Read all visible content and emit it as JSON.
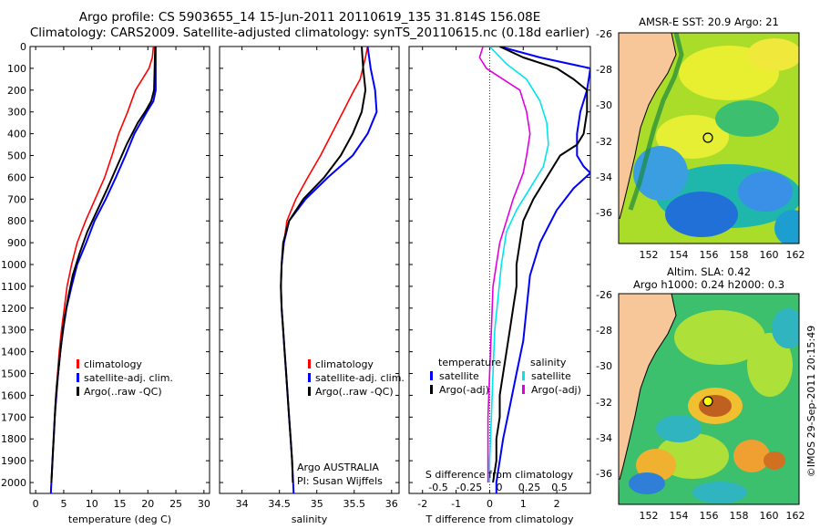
{
  "header": {
    "title_line1": "Argo profile: CS 5903655_14 15-Jun-2011 20110619_135 31.814S 156.08E",
    "title_line2": "Climatology: CARS2009. Satellite-adjusted climatology: synTS_20110615.nc (0.18d earlier)"
  },
  "colors": {
    "climatology": "#ff0000",
    "satellite": "#0000ff",
    "argo": "#000000",
    "sal_satellite": "#00e5ee",
    "sal_argo": "#e000e0",
    "land": "#f7c79a"
  },
  "chart_data": [
    {
      "type": "line",
      "id": "temperature",
      "xlabel": "temperature (deg C)",
      "ylabel": "",
      "xlim": [
        -1,
        31
      ],
      "xticks": [
        0,
        5,
        10,
        15,
        20,
        25,
        30
      ],
      "ylim": [
        0,
        2050
      ],
      "yticks": [
        0,
        100,
        200,
        300,
        400,
        500,
        600,
        700,
        800,
        900,
        1000,
        1100,
        1200,
        1300,
        1400,
        1500,
        1600,
        1700,
        1800,
        1900,
        2000
      ],
      "legend": [
        "climatology",
        "satellite-adj. clim.",
        "Argo(..raw -QC)"
      ],
      "series": [
        {
          "name": "climatology",
          "color": "red",
          "points": [
            [
              21,
              0
            ],
            [
              20.8,
              50
            ],
            [
              20.2,
              100
            ],
            [
              19,
              150
            ],
            [
              17.8,
              200
            ],
            [
              16.4,
              300
            ],
            [
              14.8,
              400
            ],
            [
              13.6,
              500
            ],
            [
              12.3,
              600
            ],
            [
              10.6,
              700
            ],
            [
              8.9,
              800
            ],
            [
              7.4,
              900
            ],
            [
              6.4,
              1000
            ],
            [
              5.6,
              1100
            ],
            [
              5.1,
              1200
            ],
            [
              4.6,
              1300
            ],
            [
              4.2,
              1400
            ],
            [
              3.9,
              1500
            ],
            [
              3.6,
              1600
            ],
            [
              3.4,
              1700
            ],
            [
              3.2,
              1800
            ],
            [
              3.0,
              1900
            ],
            [
              2.8,
              2000
            ],
            [
              2.7,
              2050
            ]
          ]
        },
        {
          "name": "satellite-adj. clim.",
          "color": "blue",
          "points": [
            [
              21.4,
              0
            ],
            [
              21.4,
              100
            ],
            [
              21.4,
              200
            ],
            [
              21,
              250
            ],
            [
              19.8,
              300
            ],
            [
              17.6,
              400
            ],
            [
              16,
              500
            ],
            [
              14.3,
              600
            ],
            [
              12.5,
              700
            ],
            [
              10.5,
              800
            ],
            [
              9,
              900
            ],
            [
              7.4,
              1000
            ],
            [
              6.4,
              1100
            ],
            [
              5.5,
              1200
            ],
            [
              4.9,
              1300
            ],
            [
              4.4,
              1400
            ],
            [
              4,
              1500
            ],
            [
              3.7,
              1600
            ],
            [
              3.4,
              1700
            ],
            [
              3.2,
              1800
            ],
            [
              3,
              1900
            ],
            [
              2.8,
              2000
            ],
            [
              2.7,
              2050
            ]
          ]
        },
        {
          "name": "Argo(..raw -QC)",
          "color": "black",
          "points": [
            [
              21.3,
              0
            ],
            [
              21.2,
              100
            ],
            [
              21.1,
              200
            ],
            [
              20.6,
              250
            ],
            [
              19.5,
              300
            ],
            [
              18.2,
              350
            ],
            [
              16.2,
              450
            ],
            [
              14.5,
              550
            ],
            [
              12.8,
              650
            ],
            [
              11,
              750
            ],
            [
              9.2,
              850
            ],
            [
              7.8,
              950
            ],
            [
              6.6,
              1050
            ],
            [
              5.8,
              1150
            ],
            [
              5.1,
              1250
            ],
            [
              4.6,
              1350
            ],
            [
              4.2,
              1450
            ],
            [
              3.8,
              1550
            ],
            [
              3.5,
              1650
            ],
            [
              3.3,
              1750
            ],
            [
              3.1,
              1850
            ],
            [
              2.9,
              1950
            ],
            [
              2.8,
              2000
            ]
          ]
        }
      ]
    },
    {
      "type": "line",
      "id": "salinity",
      "xlabel": "salinity",
      "xlim": [
        33.7,
        36.1
      ],
      "xticks": [
        34,
        34.5,
        35,
        35.5,
        36
      ],
      "xticklabels": [
        "34",
        "34.5",
        "35",
        "35.5",
        "36"
      ],
      "ylim": [
        0,
        2050
      ],
      "legend": [
        "climatology",
        "satellite-adj. clim.",
        "Argo(..raw -QC)"
      ],
      "annotation": [
        "Argo AUSTRALIA",
        "PI: Susan Wijffels"
      ],
      "series": [
        {
          "name": "climatology",
          "color": "red",
          "points": [
            [
              35.68,
              0
            ],
            [
              35.65,
              50
            ],
            [
              35.58,
              150
            ],
            [
              35.5,
              200
            ],
            [
              35.35,
              300
            ],
            [
              35.2,
              400
            ],
            [
              35.05,
              500
            ],
            [
              34.88,
              600
            ],
            [
              34.72,
              700
            ],
            [
              34.6,
              800
            ],
            [
              34.56,
              900
            ],
            [
              34.53,
              1000
            ],
            [
              34.52,
              1100
            ],
            [
              34.53,
              1200
            ],
            [
              34.55,
              1300
            ],
            [
              34.57,
              1400
            ],
            [
              34.59,
              1500
            ],
            [
              34.61,
              1600
            ],
            [
              34.63,
              1700
            ],
            [
              34.65,
              1800
            ],
            [
              34.67,
              1900
            ],
            [
              34.68,
              2000
            ]
          ]
        },
        {
          "name": "satellite-adj. clim.",
          "color": "blue",
          "points": [
            [
              35.68,
              0
            ],
            [
              35.72,
              100
            ],
            [
              35.78,
              200
            ],
            [
              35.8,
              300
            ],
            [
              35.68,
              400
            ],
            [
              35.48,
              500
            ],
            [
              35.15,
              600
            ],
            [
              34.85,
              700
            ],
            [
              34.63,
              800
            ],
            [
              34.56,
              900
            ],
            [
              34.53,
              1000
            ],
            [
              34.52,
              1100
            ],
            [
              34.53,
              1200
            ],
            [
              34.55,
              1300
            ],
            [
              34.57,
              1400
            ],
            [
              34.59,
              1500
            ],
            [
              34.61,
              1600
            ],
            [
              34.63,
              1700
            ],
            [
              34.65,
              1800
            ],
            [
              34.67,
              1900
            ],
            [
              34.69,
              2050
            ]
          ]
        },
        {
          "name": "Argo(..raw -QC)",
          "color": "black",
          "points": [
            [
              35.6,
              0
            ],
            [
              35.62,
              100
            ],
            [
              35.65,
              200
            ],
            [
              35.6,
              300
            ],
            [
              35.48,
              400
            ],
            [
              35.32,
              500
            ],
            [
              35.1,
              600
            ],
            [
              34.82,
              700
            ],
            [
              34.63,
              800
            ],
            [
              34.55,
              900
            ],
            [
              34.53,
              1000
            ],
            [
              34.52,
              1100
            ],
            [
              34.53,
              1200
            ],
            [
              34.55,
              1300
            ],
            [
              34.57,
              1400
            ],
            [
              34.59,
              1500
            ],
            [
              34.61,
              1600
            ],
            [
              34.63,
              1700
            ],
            [
              34.65,
              1800
            ],
            [
              34.67,
              1900
            ],
            [
              34.68,
              2000
            ]
          ]
        }
      ]
    },
    {
      "type": "line",
      "id": "difference",
      "xlabel": "T difference from climatology",
      "xlim": [
        -2.4,
        3
      ],
      "xticks": [
        -2,
        -1,
        0,
        1,
        2
      ],
      "ylim": [
        0,
        2050
      ],
      "xlabel_top": "S difference from climatology",
      "top_ticklabels": [
        "-0.5",
        "-0.25",
        "0",
        "0.25",
        "0.5"
      ],
      "legend": [
        {
          "group": "temperature",
          "items": [
            "satellite",
            "Argo(-adj)"
          ]
        },
        {
          "group": "salinity",
          "items": [
            "satellite",
            "Argo(-adj)"
          ]
        }
      ],
      "series": [
        {
          "name": "T satellite",
          "color": "blue",
          "points": [
            [
              0.3,
              0
            ],
            [
              1.5,
              50
            ],
            [
              3,
              100
            ],
            [
              2.9,
              200
            ],
            [
              2.7,
              300
            ],
            [
              2.6,
              400
            ],
            [
              2.6,
              500
            ],
            [
              2.8,
              550
            ],
            [
              3,
              580
            ],
            [
              2.5,
              650
            ],
            [
              2,
              750
            ],
            [
              1.5,
              900
            ],
            [
              1.2,
              1050
            ],
            [
              1.1,
              1200
            ],
            [
              1,
              1350
            ],
            [
              0.8,
              1500
            ],
            [
              0.6,
              1650
            ],
            [
              0.4,
              1800
            ],
            [
              0.3,
              1900
            ],
            [
              0.2,
              2000
            ],
            [
              0.2,
              2050
            ]
          ]
        },
        {
          "name": "T Argo(-adj)",
          "color": "black",
          "points": [
            [
              0.3,
              0
            ],
            [
              1,
              50
            ],
            [
              2,
              100
            ],
            [
              2.5,
              150
            ],
            [
              2.9,
              200
            ],
            [
              2.9,
              300
            ],
            [
              2.8,
              400
            ],
            [
              2.6,
              450
            ],
            [
              2.1,
              500
            ],
            [
              1.7,
              600
            ],
            [
              1.3,
              700
            ],
            [
              1,
              800
            ],
            [
              0.9,
              900
            ],
            [
              0.8,
              1000
            ],
            [
              0.8,
              1100
            ],
            [
              0.7,
              1200
            ],
            [
              0.6,
              1300
            ],
            [
              0.5,
              1400
            ],
            [
              0.4,
              1500
            ],
            [
              0.3,
              1600
            ],
            [
              0.3,
              1700
            ],
            [
              0.2,
              1800
            ],
            [
              0.2,
              1900
            ],
            [
              0.1,
              2000
            ]
          ]
        },
        {
          "name": "S satellite",
          "color": "cyan",
          "points": [
            [
              0,
              0
            ],
            [
              0.5,
              80
            ],
            [
              1.1,
              150
            ],
            [
              1.5,
              250
            ],
            [
              1.7,
              350
            ],
            [
              1.75,
              450
            ],
            [
              1.6,
              550
            ],
            [
              1.2,
              650
            ],
            [
              0.8,
              750
            ],
            [
              0.5,
              850
            ],
            [
              0.35,
              1000
            ],
            [
              0.25,
              1150
            ],
            [
              0.15,
              1300
            ],
            [
              0.1,
              1500
            ],
            [
              0.05,
              1700
            ],
            [
              0,
              1900
            ],
            [
              0,
              2000
            ]
          ]
        },
        {
          "name": "S Argo(-adj)",
          "color": "magenta",
          "points": [
            [
              -0.2,
              0
            ],
            [
              -0.3,
              50
            ],
            [
              -0.1,
              100
            ],
            [
              0.4,
              150
            ],
            [
              0.9,
              200
            ],
            [
              1.1,
              300
            ],
            [
              1.2,
              400
            ],
            [
              1.1,
              500
            ],
            [
              1,
              580
            ],
            [
              0.9,
              620
            ],
            [
              0.7,
              700
            ],
            [
              0.5,
              800
            ],
            [
              0.3,
              900
            ],
            [
              0.2,
              1000
            ],
            [
              0.1,
              1100
            ],
            [
              0.05,
              1300
            ],
            [
              0,
              1500
            ],
            [
              -0.05,
              1700
            ],
            [
              -0.05,
              1900
            ],
            [
              -0.05,
              2000
            ]
          ]
        }
      ]
    }
  ],
  "maps": {
    "sst": {
      "title": "AMSR-E SST: 20.9 Argo: 21",
      "yticks": [
        "-26",
        "-28",
        "-30",
        "-32",
        "-34",
        "-36"
      ],
      "xticks": [
        "152",
        "154",
        "156",
        "158",
        "160",
        "162"
      ]
    },
    "sla": {
      "title_line1": "Altim. SLA: 0.42",
      "title_line2": "Argo h1000: 0.24 h2000: 0.3",
      "yticks": [
        "-26",
        "-28",
        "-30",
        "-32",
        "-34",
        "-36"
      ],
      "xticks": [
        "152",
        "154",
        "156",
        "158",
        "160",
        "162"
      ]
    }
  },
  "footer": {
    "credit": "©IMOS 29-Sep-2011 20:15:49"
  }
}
